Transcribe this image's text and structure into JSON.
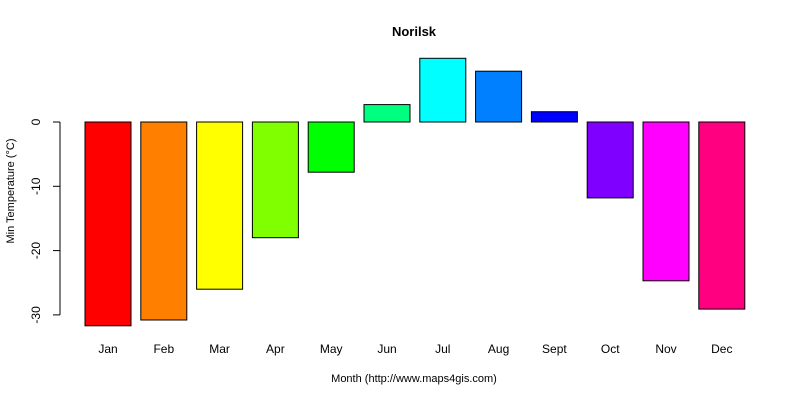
{
  "chart_data": {
    "type": "bar",
    "title": "Norilsk",
    "xlabel": "Month (http://www.maps4gis.com)",
    "ylabel": "Min Temperature (°C)",
    "categories": [
      "Jan",
      "Feb",
      "Mar",
      "Apr",
      "May",
      "Jun",
      "Jul",
      "Aug",
      "Sept",
      "Oct",
      "Nov",
      "Dec"
    ],
    "values": [
      -31.7,
      -30.8,
      -26.0,
      -18.0,
      -7.8,
      2.7,
      9.9,
      7.9,
      1.6,
      -11.8,
      -24.7,
      -29.1
    ],
    "colors": [
      "#ff0000",
      "#ff8000",
      "#ffff00",
      "#80ff00",
      "#00ff00",
      "#00ff80",
      "#00ffff",
      "#0080ff",
      "#0000ff",
      "#8000ff",
      "#ff00ff",
      "#ff0080"
    ],
    "yticks": [
      0,
      -10,
      -20,
      -30
    ],
    "ytick_labels": [
      "0",
      "-10",
      "-20",
      "-30"
    ],
    "ylim": [
      -32.5,
      10.5
    ],
    "grid": false,
    "legend": "none"
  }
}
